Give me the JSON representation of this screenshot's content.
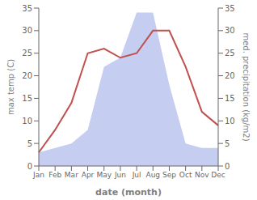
{
  "chart_data": {
    "type": "line",
    "categories": [
      "Jan",
      "Feb",
      "Mar",
      "Apr",
      "May",
      "Jun",
      "Jul",
      "Aug",
      "Sep",
      "Oct",
      "Nov",
      "Dec"
    ],
    "series": [
      {
        "type": "area",
        "axis": "y2",
        "color": "#c5cdf0",
        "values": [
          3,
          4,
          5,
          8,
          22,
          24,
          34,
          34,
          18,
          5,
          4,
          4
        ]
      },
      {
        "type": "line",
        "color": "#c0504d",
        "values": [
          3,
          8,
          14,
          25,
          26,
          24,
          25,
          30,
          30,
          22,
          12,
          9
        ]
      }
    ],
    "xlabel": "date (month)",
    "ylabel": "max temp (C)",
    "y2label": "med. precipitation (kg/m2)",
    "ylim": [
      0,
      35
    ],
    "yticks": [
      0,
      5,
      10,
      15,
      20,
      25,
      30,
      35
    ],
    "y2lim": [
      0,
      35
    ],
    "y2ticks": [
      0,
      5,
      10,
      15,
      20,
      25,
      30,
      35
    ],
    "grid": false
  }
}
